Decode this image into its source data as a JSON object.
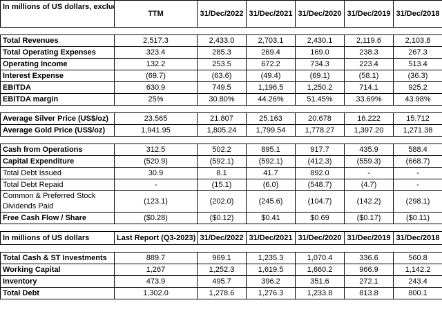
{
  "top_section": {
    "header_label": "In millions of US dollars, excluding the per share item",
    "columns": [
      "TTM",
      "31/Dec/2022",
      "31/Dec/2021",
      "31/Dec/2020",
      "31/Dec/2019",
      "31/Dec/2018"
    ],
    "groups": [
      {
        "rows": [
          {
            "label": "Total Revenues",
            "bold": true,
            "values": [
              "2,517.3",
              "2,433.0",
              "2,703.1",
              "2,430.1",
              "2,119.6",
              "2,103.8"
            ]
          },
          {
            "label": "Total Operating Expenses",
            "bold": true,
            "values": [
              "323.4",
              "285.3",
              "269.4",
              "169.0",
              "238.3",
              "267.3"
            ]
          },
          {
            "label": "Operating Income",
            "bold": true,
            "values": [
              "132.2",
              "253.5",
              "672.2",
              "734.3",
              "223.4",
              "513.4"
            ]
          },
          {
            "label": "Interest Expense",
            "bold": true,
            "values": [
              "(69.7)",
              "(63.6)",
              "(49.4)",
              "(69.1)",
              "(58.1)",
              "(36.3)"
            ]
          },
          {
            "label": "EBITDA",
            "bold": true,
            "values": [
              "630.9",
              "749.5",
              "1,196.5",
              "1,250.2",
              "714.1",
              "925.2"
            ]
          },
          {
            "label": "EBITDA margin",
            "bold": true,
            "values": [
              "25%",
              "30.80%",
              "44.26%",
              "51.45%",
              "33.69%",
              "43.98%"
            ]
          }
        ]
      },
      {
        "rows": [
          {
            "label": "Average Silver Price (US$/oz)",
            "bold": true,
            "values": [
              "23.565",
              "21.807",
              "25.163",
              "20.678",
              "16.222",
              "15.712"
            ]
          },
          {
            "label": "Average Gold Price (US$/oz)",
            "bold": true,
            "values": [
              "1,941.95",
              "1,805.24",
              "1,799.54",
              "1,778.27",
              "1,397.20",
              "1,271.38"
            ]
          }
        ]
      },
      {
        "rows": [
          {
            "label": "Cash from Operations",
            "bold": true,
            "values": [
              "312.5",
              "502.2",
              "895.1",
              "917.7",
              "435.9",
              "588.4"
            ]
          },
          {
            "label": "Capital Expenditure",
            "bold": true,
            "values": [
              "(520.9)",
              "(592.1)",
              "(592.1)",
              "(412.3)",
              "(559.3)",
              "(668.7)"
            ]
          },
          {
            "label": "Total Debt Issued",
            "bold": false,
            "values": [
              "30.9",
              "8.1",
              "41.7",
              "892.0",
              "-",
              "-"
            ]
          },
          {
            "label": "Total Debt Repaid",
            "bold": false,
            "values": [
              "-",
              "(15.1)",
              "(6.0)",
              "(548.7)",
              "(4.7)",
              "-"
            ]
          },
          {
            "label": "Common & Preferred Stock Dividends Paid",
            "bold": false,
            "wrap": true,
            "values": [
              "(123.1)",
              "(202.0)",
              "(245.6)",
              "(104.7)",
              "(142.2)",
              "(298.1)"
            ]
          },
          {
            "label": "Free Cash Flow / Share",
            "bold": true,
            "values": [
              "($0.28)",
              "($0.12)",
              "$0.41",
              "$0.69",
              "($0.17)",
              "($0.11)"
            ]
          }
        ]
      }
    ]
  },
  "bottom_section": {
    "header_label": "In millions of US dollars",
    "columns": [
      "Last Report (Q3-2023)",
      "31/Dec/2022",
      "31/Dec/2021",
      "31/Dec/2020",
      "31/Dec/2019",
      "31/Dec/2018"
    ],
    "rows": [
      {
        "label": "Total Cash & ST Investments",
        "bold": true,
        "values": [
          "889.7",
          "969.1",
          "1,235.3",
          "1,070.4",
          "336.6",
          "560.8"
        ]
      },
      {
        "label": "Working Capital",
        "bold": true,
        "values": [
          "1,267",
          "1,252.3",
          "1,619.5",
          "1,660.2",
          "966.9",
          "1,142.2"
        ]
      },
      {
        "label": "Inventory",
        "bold": true,
        "values": [
          "473.9",
          "495.7",
          "396.2",
          "351.6",
          "272.1",
          "243.4"
        ]
      },
      {
        "label": "Total Debt",
        "bold": true,
        "values": [
          "1,302.0",
          "1,278.6",
          "1,276.3",
          "1,233.8",
          "813.8",
          "800.1"
        ]
      }
    ]
  }
}
